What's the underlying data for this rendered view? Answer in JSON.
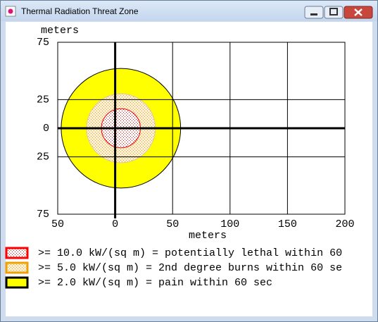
{
  "window": {
    "title": "Thermal Radiation Threat Zone"
  },
  "chart_data": {
    "type": "circle-zones",
    "x_label": "meters",
    "y_label": "meters",
    "xlim": [
      -50,
      200
    ],
    "xticks": [
      {
        "value": -50,
        "label": "50"
      },
      0,
      50,
      100,
      150,
      200
    ],
    "ylim": [
      -75,
      75
    ],
    "yticks": [
      75,
      25,
      0,
      {
        "value": -25,
        "label": "25"
      },
      {
        "value": -75,
        "label": "75"
      }
    ],
    "grid": true,
    "series": [
      {
        "name": ">= 10.0 kW/(sq m) = potentially lethal within 60",
        "color": "#ff0000",
        "fill": "#ffffff",
        "edge": "#ff0000",
        "pattern": "dots",
        "center_x": 5,
        "center_y": 0,
        "radius": 17
      },
      {
        "name": ">= 5.0 kW/(sq m) = 2nd degree burns within 60 se",
        "color": "#f0a000",
        "fill": "#f8f0d8",
        "edge": "#e0c890",
        "pattern": "dots",
        "center_x": 5,
        "center_y": 0,
        "radius": 30
      },
      {
        "name": ">= 2.0 kW/(sq m) = pain within 60 sec",
        "color": "#ffff00",
        "fill": "#ffff00",
        "edge": "#000000",
        "pattern": "none",
        "center_x": 5,
        "center_y": 0,
        "radius": 52
      }
    ]
  }
}
